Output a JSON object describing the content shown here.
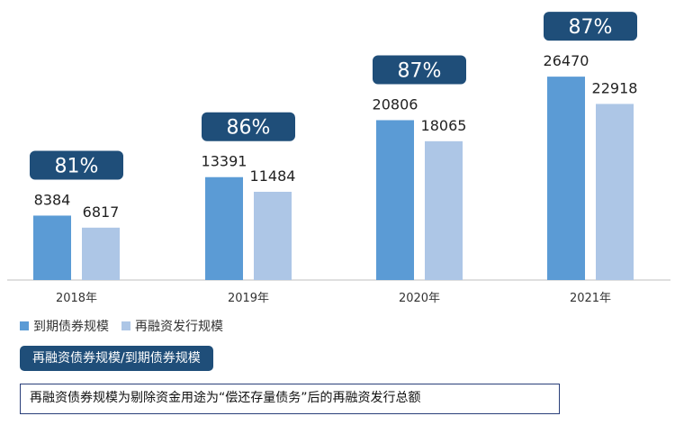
{
  "chart_data": {
    "type": "bar",
    "categories": [
      "2018年",
      "2019年",
      "2020年",
      "2021年"
    ],
    "series": [
      {
        "name": "到期债券规模",
        "values": [
          8384,
          13391,
          20806,
          26470
        ],
        "color": "#5b9bd5"
      },
      {
        "name": "再融资发行规模",
        "values": [
          6817,
          11484,
          18065,
          22918
        ],
        "color": "#adc6e6"
      }
    ],
    "ratio_labels": [
      "81%",
      "86%",
      "87%",
      "87%"
    ],
    "ratio_color": "#1f4e79",
    "ylim": [
      0,
      30000
    ],
    "grid": false,
    "legend": "bottom-left"
  },
  "ratio_badge_label": "再融资债券规模/到期债券规模",
  "note": "再融资债券规模为剔除资金用途为“偿还存量债务”后的再融资发行总额"
}
